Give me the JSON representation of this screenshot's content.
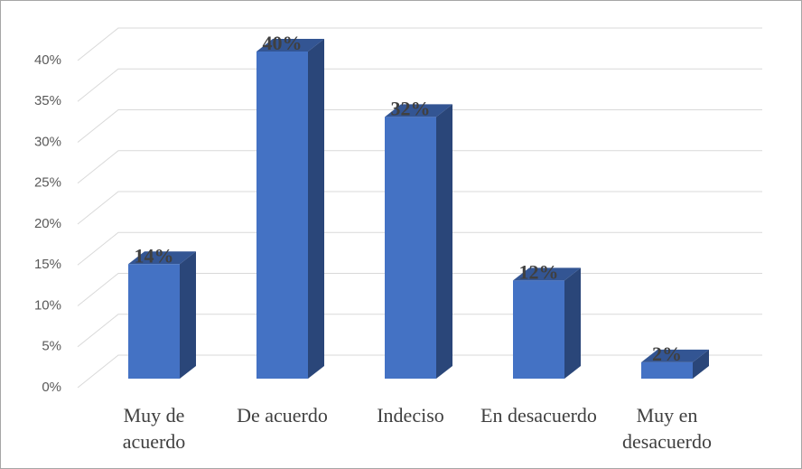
{
  "chart_data": {
    "type": "bar3d",
    "categories": [
      "Muy de acuerdo",
      "De acuerdo",
      "Indeciso",
      "En desacuerdo",
      "Muy en desacuerdo"
    ],
    "values": [
      14,
      40,
      32,
      12,
      2
    ],
    "value_labels": [
      "14%",
      "40%",
      "32%",
      "12%",
      "2%"
    ],
    "color": "#4472c4",
    "ylim": [
      0,
      40
    ],
    "yticks": [
      {
        "value": 0,
        "label": "0%"
      },
      {
        "value": 5,
        "label": "5%"
      },
      {
        "value": 10,
        "label": "10%"
      },
      {
        "value": 15,
        "label": "15%"
      },
      {
        "value": 20,
        "label": "20%"
      },
      {
        "value": 25,
        "label": "25%"
      },
      {
        "value": 30,
        "label": "30%"
      },
      {
        "value": 35,
        "label": "35%"
      },
      {
        "value": 40,
        "label": "40%"
      }
    ],
    "grid": true
  }
}
